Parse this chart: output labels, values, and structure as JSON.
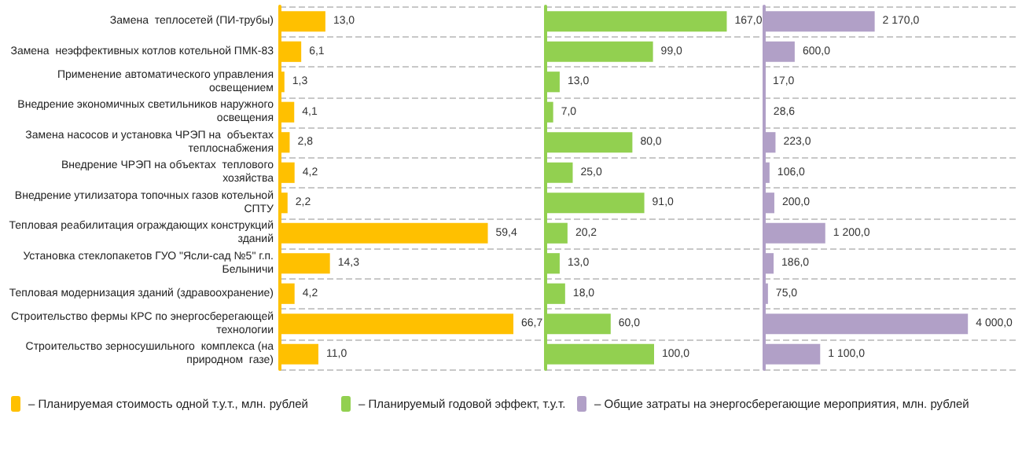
{
  "chart_data": [
    {
      "type": "bar",
      "orientation": "horizontal",
      "categories": [
        "Замена  теплосетей (ПИ-трубы)",
        "Замена  неэффективных котлов котельной ПМК-83",
        "Применение автоматического управления освещением",
        "Внедрение экономичных светильников наружного освещения",
        "Замена насосов и установка ЧРЭП на  объектах теплоснабжения",
        "Внедрение ЧРЭП на объектах  теплового хозяйства",
        "Внедрение утилизатора топочных газов котельной СПТУ",
        "Тепловая реабилитация ограждающих конструкций зданий",
        "Установка стеклопакетов ГУО \"Ясли-сад №5\" г.п. Белыничи",
        "Тепловая модернизация зданий (здравоохранение)",
        "Строительство фермы КРС по энергосберегающей технологии",
        "Строительство зерносушильного  комплекса (на природном  газе)"
      ],
      "series": [
        {
          "name": "– Планируемая стоимость одной т.у.т., млн. рублей",
          "color": "#ffc000",
          "values": [
            13.0,
            6.1,
            1.3,
            4.1,
            2.8,
            4.2,
            2.2,
            59.4,
            14.3,
            4.2,
            66.7,
            11.0
          ],
          "value_labels": [
            "13,0",
            "6,1",
            "1,3",
            "4,1",
            "2,8",
            "4,2",
            "2,2",
            "59,4",
            "14,3",
            "4,2",
            "66,7",
            "11,0"
          ]
        }
      ],
      "xlim": [
        0,
        75
      ],
      "tick_labels": "y",
      "grid": "y",
      "legend": "bottom"
    },
    {
      "type": "bar",
      "orientation": "horizontal",
      "categories": [
        null,
        null,
        null,
        null,
        null,
        null,
        null,
        null,
        null,
        null,
        null,
        null
      ],
      "series": [
        {
          "name": "– Планируемый годовой эффект, т.у.т.",
          "color": "#92d050",
          "values": [
            167.0,
            99.0,
            13.0,
            7.0,
            80.0,
            25.0,
            91.0,
            20.2,
            13.0,
            18.0,
            60.0,
            100.0
          ],
          "value_labels": [
            "167,0",
            "99,0",
            "13,0",
            "7,0",
            "80,0",
            "25,0",
            "91,0",
            "20,2",
            "13,0",
            "18,0",
            "60,0",
            "100,0"
          ]
        }
      ],
      "xlim": [
        0,
        200
      ],
      "tick_labels": false,
      "grid": "y",
      "legend": "bottom"
    },
    {
      "type": "bar",
      "orientation": "horizontal",
      "categories": [
        null,
        null,
        null,
        null,
        null,
        null,
        null,
        null,
        null,
        null,
        null,
        null
      ],
      "series": [
        {
          "name": "– Общие затраты на энергосберегающие мероприятия, млн. рублей",
          "color": "#b1a0c7",
          "values": [
            2170.0,
            600.0,
            17.0,
            28.6,
            223.0,
            106.0,
            200.0,
            1200.0,
            186.0,
            75.0,
            4000.0,
            1100.0
          ],
          "value_labels": [
            "2 170,0",
            "600,0",
            "17,0",
            "28,6",
            "223,0",
            "106,0",
            "200,0",
            "1 200,0",
            "186,0",
            "75,0",
            "4 000,0",
            "1 100,0"
          ]
        }
      ],
      "xlim": [
        0,
        5000
      ],
      "tick_labels": false,
      "grid": "y",
      "legend": "bottom"
    }
  ]
}
